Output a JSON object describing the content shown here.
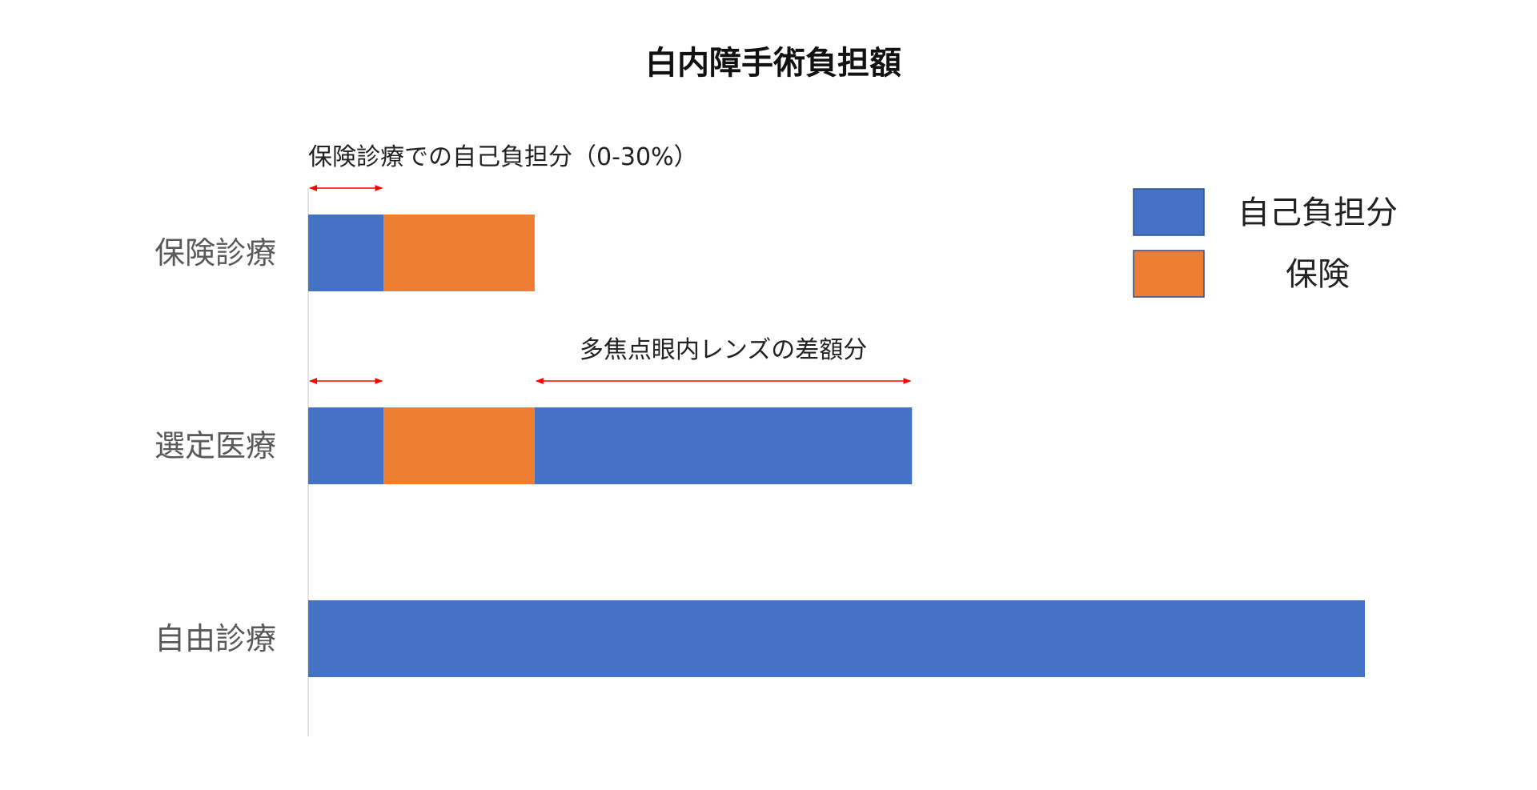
{
  "chart_data": {
    "type": "bar",
    "orientation": "horizontal",
    "stacked": true,
    "title": "白内障手術負担額",
    "categories": [
      "保険診療",
      "選定医療",
      "自由診療"
    ],
    "series": [
      {
        "name": "自己負担分",
        "color": "#4472C4"
      },
      {
        "name": "保険",
        "color": "#ED7D31"
      }
    ],
    "segments": [
      [
        {
          "series": 0,
          "value": 1
        },
        {
          "series": 1,
          "value": 2
        }
      ],
      [
        {
          "series": 0,
          "value": 1
        },
        {
          "series": 1,
          "value": 2
        },
        {
          "series": 0,
          "value": 5
        }
      ],
      [
        {
          "series": 0,
          "value": 14
        }
      ]
    ],
    "xlim": [
      0,
      14
    ],
    "annotations": [
      {
        "text": "保険診療での自己負担分（0-30%）",
        "from": 0,
        "to": 1,
        "category": 0
      },
      {
        "text": "",
        "from": 0,
        "to": 1,
        "category": 1
      },
      {
        "text": "多焦点眼内レンズの差額分",
        "from": 3,
        "to": 8,
        "category": 1
      }
    ],
    "legend_position": "top-right",
    "arrow_color": "#FF0000",
    "axis_line_color": "#D9D9D9"
  }
}
